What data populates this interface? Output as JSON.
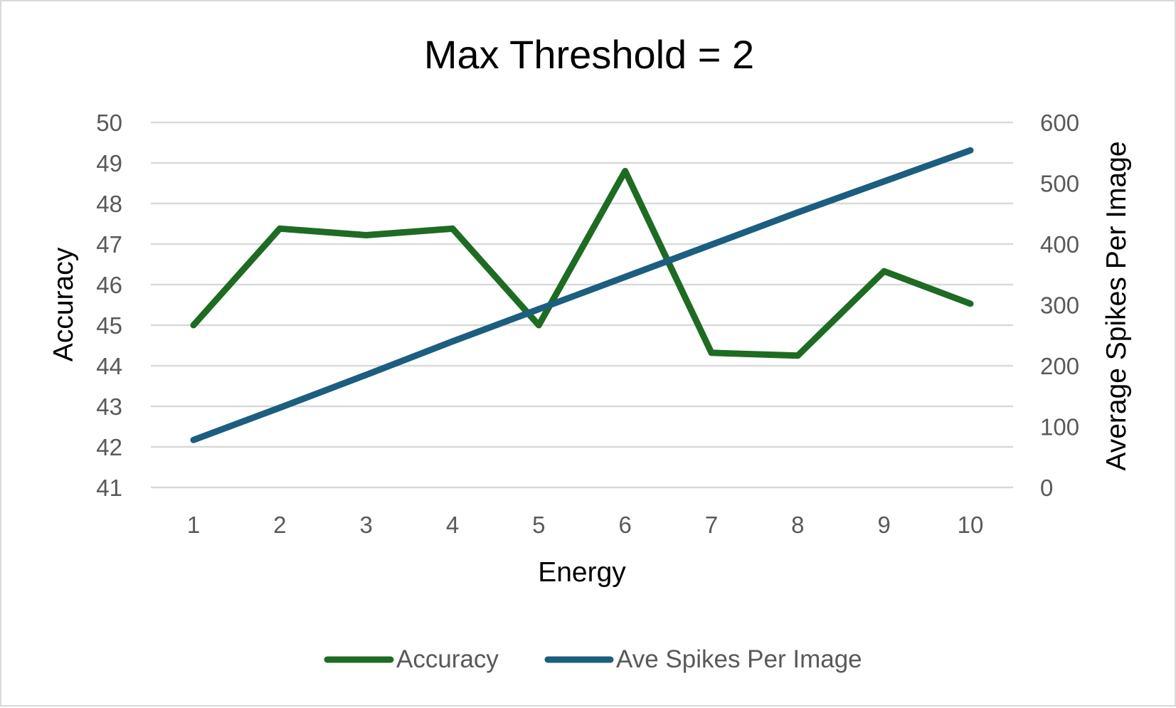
{
  "chart_data": {
    "type": "line",
    "title": "Max Threshold = 2",
    "xlabel": "Energy",
    "ylabel": "Accuracy",
    "y2label": "Average Spikes Per Image",
    "x": [
      1,
      2,
      3,
      4,
      5,
      6,
      7,
      8,
      9,
      10
    ],
    "x_tick_labels": [
      "1",
      "2",
      "3",
      "4",
      "5",
      "6",
      "7",
      "8",
      "9",
      "10"
    ],
    "ylim": [
      41,
      50
    ],
    "y_ticks": [
      41,
      42,
      43,
      44,
      45,
      46,
      47,
      48,
      49,
      50
    ],
    "y_tick_labels": [
      "41",
      "42",
      "43",
      "44",
      "45",
      "46",
      "47",
      "48",
      "49",
      "50"
    ],
    "y2lim": [
      0,
      600
    ],
    "y2_ticks": [
      0,
      100,
      200,
      300,
      400,
      500,
      600
    ],
    "y2_tick_labels": [
      "0",
      "100",
      "200",
      "300",
      "400",
      "500",
      "600"
    ],
    "grid": true,
    "legend_position": "bottom",
    "series": [
      {
        "name": "Accuracy",
        "axis": "left",
        "color": "#1e6b23",
        "values": [
          45.0,
          47.38,
          47.22,
          47.38,
          45.0,
          48.8,
          44.32,
          44.25,
          46.33,
          45.53
        ]
      },
      {
        "name": "Ave Spikes Per Image",
        "axis": "right",
        "color": "#1b5e80",
        "values": [
          78,
          131,
          185,
          240,
          293,
          346,
          399,
          452,
          503,
          554
        ]
      }
    ]
  }
}
